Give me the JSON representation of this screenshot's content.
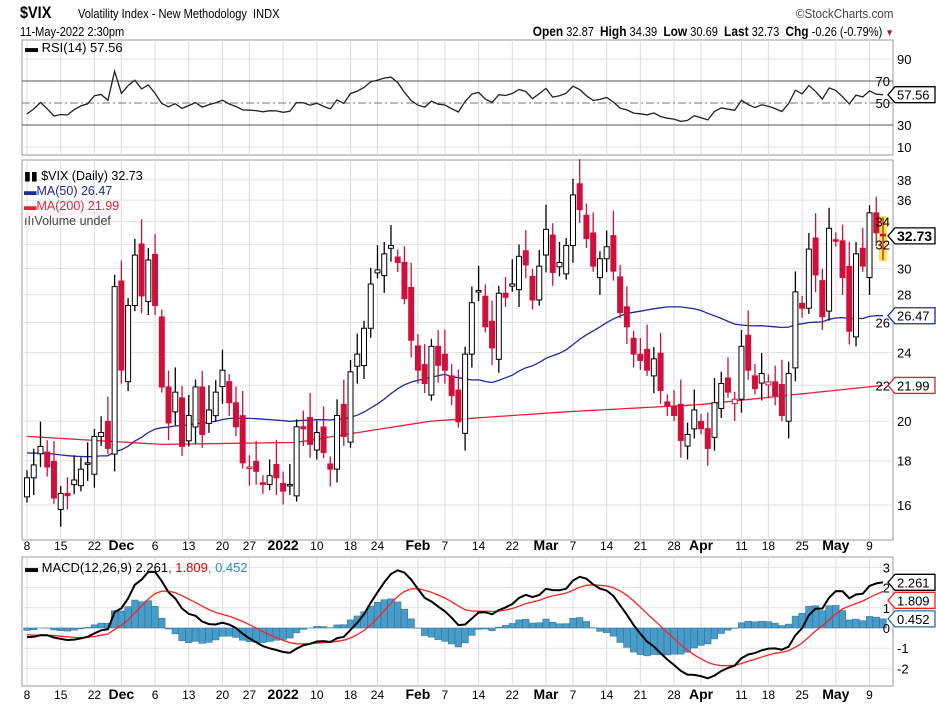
{
  "header": {
    "symbol": "$VIX",
    "name": "Volatility Index - New Methodology",
    "exchange": "INDX",
    "datetime": "11-May-2022 2:30pm",
    "brand": "©StockCharts.com",
    "open_label": "Open",
    "open": "32.87",
    "high_label": "High",
    "high": "34.39",
    "low_label": "Low",
    "low": "30.69",
    "last_label": "Last",
    "last": "32.73",
    "chg_label": "Chg",
    "chg": "-0.26 (-0.79%)",
    "chg_arrow": "▼"
  },
  "colors": {
    "up": "#000000",
    "down": "#d0103a",
    "ma50": "#1c2a9c",
    "ma200": "#e8213a",
    "macd": "#000000",
    "signal": "#ff2020",
    "hist": "#4a9cc8",
    "highlight": "#f7e84a"
  },
  "chart_data": [
    {
      "type": "candlestick",
      "title": "$VIX (Daily) 32.73",
      "scale": "log",
      "ylim": [
        15,
        39
      ],
      "yticks": [
        16,
        18,
        20,
        22,
        24,
        26,
        28,
        30,
        32,
        34,
        36,
        38
      ],
      "legend": [
        "$VIX (Daily) 32.73",
        "MA(50) 26.47",
        "MA(200) 21.99",
        "Volume undef"
      ],
      "x_labels": [
        {
          "i": 0,
          "t": "8"
        },
        {
          "i": 5,
          "t": "15"
        },
        {
          "i": 10,
          "t": "22"
        },
        {
          "i": 14,
          "t": "Dec",
          "bold": true
        },
        {
          "i": 19,
          "t": "6"
        },
        {
          "i": 24,
          "t": "13"
        },
        {
          "i": 29,
          "t": "20"
        },
        {
          "i": 33,
          "t": "27"
        },
        {
          "i": 38,
          "t": "2022",
          "bold": true
        },
        {
          "i": 43,
          "t": "10"
        },
        {
          "i": 48,
          "t": "18"
        },
        {
          "i": 52,
          "t": "24"
        },
        {
          "i": 58,
          "t": "Feb",
          "bold": true
        },
        {
          "i": 62,
          "t": "7"
        },
        {
          "i": 67,
          "t": "14"
        },
        {
          "i": 72,
          "t": "22"
        },
        {
          "i": 77,
          "t": "Mar",
          "bold": true
        },
        {
          "i": 81,
          "t": "7"
        },
        {
          "i": 86,
          "t": "14"
        },
        {
          "i": 91,
          "t": "21"
        },
        {
          "i": 96,
          "t": "28"
        },
        {
          "i": 100,
          "t": "Apr",
          "bold": true
        },
        {
          "i": 106,
          "t": "11"
        },
        {
          "i": 110,
          "t": "18"
        },
        {
          "i": 115,
          "t": "25"
        },
        {
          "i": 120,
          "t": "May",
          "bold": true
        },
        {
          "i": 125,
          "t": "9"
        }
      ],
      "close": [
        17.2,
        17.8,
        18.7,
        17.7,
        16.3,
        16.5,
        16.4,
        17.1,
        17.6,
        17.9,
        19.2,
        19.4,
        18.6,
        28.6,
        22.9,
        27.2,
        31.1,
        27.9,
        30.7,
        27.2,
        21.9,
        19.9,
        21.6,
        18.7,
        20.3,
        21.9,
        19.3,
        20.6,
        21.6,
        22.9,
        21.0,
        19.7,
        17.9,
        17.7,
        17.5,
        16.9,
        17.3,
        17.2,
        16.6,
        16.9,
        19.7,
        19.6,
        18.8,
        19.4,
        18.4,
        17.6,
        20.3,
        19.2,
        22.8,
        23.9,
        25.6,
        28.8,
        29.9,
        31.2,
        31.9,
        30.5,
        27.7,
        24.8,
        22.9,
        22.1,
        24.4,
        23.2,
        22.9,
        21.4,
        19.96,
        23.9,
        27.4,
        28.3,
        25.7,
        24.3,
        28.1,
        27.8,
        28.8,
        31.0,
        30.3,
        27.6,
        30.2,
        33.3,
        29.7,
        30.5,
        31.9,
        36.5,
        35.1,
        32.5,
        30.2,
        30.8,
        31.8,
        29.8,
        26.7,
        25.7,
        23.9,
        23.5,
        22.9,
        23.6,
        21.7,
        20.8,
        20.3,
        19.0,
        19.3,
        20.6,
        19.6,
        18.6,
        21.0,
        22.1,
        21.6,
        21.2,
        24.4,
        22.9,
        21.8,
        22.7,
        22.2,
        21.4,
        20.3,
        22.7,
        28.2,
        27.0,
        31.6,
        29.5,
        26.4,
        33.4,
        32.3,
        29.3,
        25.4,
        31.2,
        30.2,
        34.8,
        33.0,
        32.73
      ],
      "last_bar": {
        "open": 32.87,
        "high": 34.39,
        "low": 30.69,
        "close": 32.73
      },
      "ma200_anchors": [
        {
          "i": 0,
          "v": 19.2
        },
        {
          "i": 20,
          "v": 18.8
        },
        {
          "i": 40,
          "v": 18.9
        },
        {
          "i": 60,
          "v": 20.0
        },
        {
          "i": 80,
          "v": 20.5
        },
        {
          "i": 100,
          "v": 20.9
        },
        {
          "i": 127,
          "v": 21.99
        }
      ],
      "ma50_last": "26.47",
      "ma200_last": "21.99",
      "last_label": "32.73"
    },
    {
      "type": "line",
      "title": "RSI(14) 57.56",
      "ylim": [
        0,
        100
      ],
      "yticks": [
        10,
        30,
        50,
        70,
        90
      ],
      "last_label": "57.56"
    },
    {
      "type": "line+bar",
      "title": "MACD(12,26,9)",
      "values_label": {
        "macd": "2.261",
        "signal": "1.809",
        "hist": "0.452"
      },
      "yticks": [
        -2,
        -1,
        0,
        1,
        2,
        3
      ],
      "sep": ", "
    }
  ]
}
